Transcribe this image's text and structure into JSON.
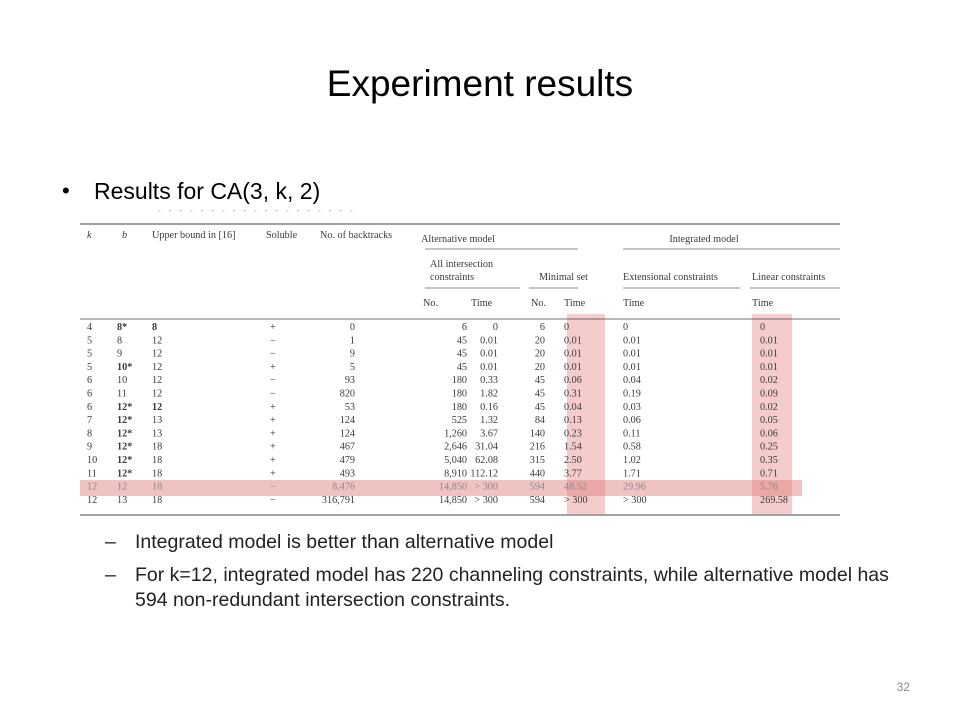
{
  "slide": {
    "title": "Experiment results",
    "bullet": "Results for CA(3, k, 2)",
    "sub_bullets": [
      "Integrated model is better than alternative model",
      "For k=12, integrated model has 220 channeling constraints, while alternative model has 594 non-redundant intersection constraints."
    ],
    "page_number": "32"
  },
  "colors": {
    "highlight": "#e07878",
    "text": "#000000",
    "table_text": "#3a3a3a"
  },
  "table": {
    "group_headers": {
      "alternative": "Alternative model",
      "integrated": "Integrated model"
    },
    "sub_headers": {
      "all_intersection": [
        "All intersection",
        "constraints"
      ],
      "minimal_set": "Minimal set",
      "extensional": "Extensional constraints",
      "linear": "Linear constraints"
    },
    "columns": [
      "k",
      "b",
      "Upper bound in [16]",
      "Soluble",
      "No. of backtracks",
      "No.",
      "Time",
      "No.",
      "Time",
      "Time",
      "Time"
    ],
    "rows": [
      [
        "4",
        "8*",
        "8",
        "+",
        "0",
        "6",
        "0",
        "6",
        "0",
        "0",
        "0"
      ],
      [
        "5",
        "8",
        "12",
        "−",
        "1",
        "45",
        "0.01",
        "20",
        "0.01",
        "0.01",
        "0.01"
      ],
      [
        "5",
        "9",
        "12",
        "−",
        "9",
        "45",
        "0.01",
        "20",
        "0.01",
        "0.01",
        "0.01"
      ],
      [
        "5",
        "10*",
        "12",
        "+",
        "5",
        "45",
        "0.01",
        "20",
        "0.01",
        "0.01",
        "0.01"
      ],
      [
        "6",
        "10",
        "12",
        "−",
        "93",
        "180",
        "0.33",
        "45",
        "0.06",
        "0.04",
        "0.02"
      ],
      [
        "6",
        "11",
        "12",
        "−",
        "820",
        "180",
        "1.82",
        "45",
        "0.31",
        "0.19",
        "0.09"
      ],
      [
        "6",
        "12*",
        "12",
        "+",
        "53",
        "180",
        "0.16",
        "45",
        "0.04",
        "0.03",
        "0.02"
      ],
      [
        "7",
        "12*",
        "13",
        "+",
        "124",
        "525",
        "1.32",
        "84",
        "0.13",
        "0.06",
        "0.05"
      ],
      [
        "8",
        "12*",
        "13",
        "+",
        "124",
        "1,260",
        "3.67",
        "140",
        "0.23",
        "0.11",
        "0.06"
      ],
      [
        "9",
        "12*",
        "18",
        "+",
        "467",
        "2,646",
        "31.04",
        "216",
        "1.54",
        "0.58",
        "0.25"
      ],
      [
        "10",
        "12*",
        "18",
        "+",
        "479",
        "5,040",
        "62.08",
        "315",
        "2.50",
        "1.02",
        "0.35"
      ],
      [
        "11",
        "12*",
        "18",
        "+",
        "493",
        "8,910",
        "112.12",
        "440",
        "3.77",
        "1.71",
        "0.71"
      ],
      [
        "12",
        "12",
        "18",
        "−",
        "8,476",
        "14,850",
        "> 300",
        "594",
        "48.52",
        "29.96",
        "5.76"
      ],
      [
        "12",
        "13",
        "18",
        "−",
        "316,791",
        "14,850",
        "> 300",
        "594",
        "> 300",
        "> 300",
        "269.58"
      ]
    ]
  }
}
